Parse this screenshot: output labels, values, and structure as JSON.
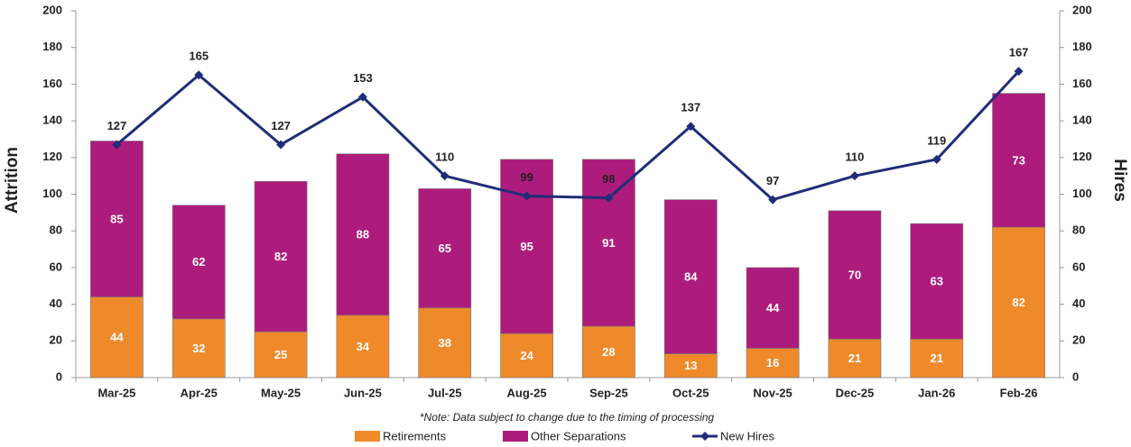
{
  "chart_data": {
    "type": "bar",
    "stacked": true,
    "categories": [
      "Mar-25",
      "Apr-25",
      "May-25",
      "Jun-25",
      "Jul-25",
      "Aug-25",
      "Sep-25",
      "Oct-25",
      "Nov-25",
      "Dec-25",
      "Jan-26",
      "Feb-26"
    ],
    "series": [
      {
        "name": "Retirements",
        "color": "#ef8a2b",
        "values": [
          44,
          32,
          25,
          34,
          38,
          24,
          28,
          13,
          16,
          21,
          21,
          82
        ]
      },
      {
        "name": "Other Separations",
        "color": "#ad1c7c",
        "values": [
          85,
          62,
          82,
          88,
          65,
          95,
          91,
          84,
          44,
          70,
          63,
          73
        ]
      },
      {
        "name": "New Hires",
        "type": "line",
        "axis": "y2",
        "color": "#1f2d78",
        "values": [
          127,
          165,
          127,
          153,
          110,
          99,
          98,
          137,
          97,
          110,
          119,
          167
        ]
      }
    ],
    "ylabel": "Attrition",
    "y2label": "Hires",
    "ylim": [
      0,
      200
    ],
    "yticks": [
      0,
      20,
      40,
      60,
      80,
      100,
      120,
      140,
      160,
      180,
      200
    ],
    "y2lim": [
      0,
      200
    ],
    "y2ticks": [
      0,
      20,
      40,
      60,
      80,
      100,
      120,
      140,
      160,
      180,
      200
    ],
    "annotation": "*Note: Data subject to change due to the timing of processing",
    "legend": "bottom",
    "grid": false
  }
}
